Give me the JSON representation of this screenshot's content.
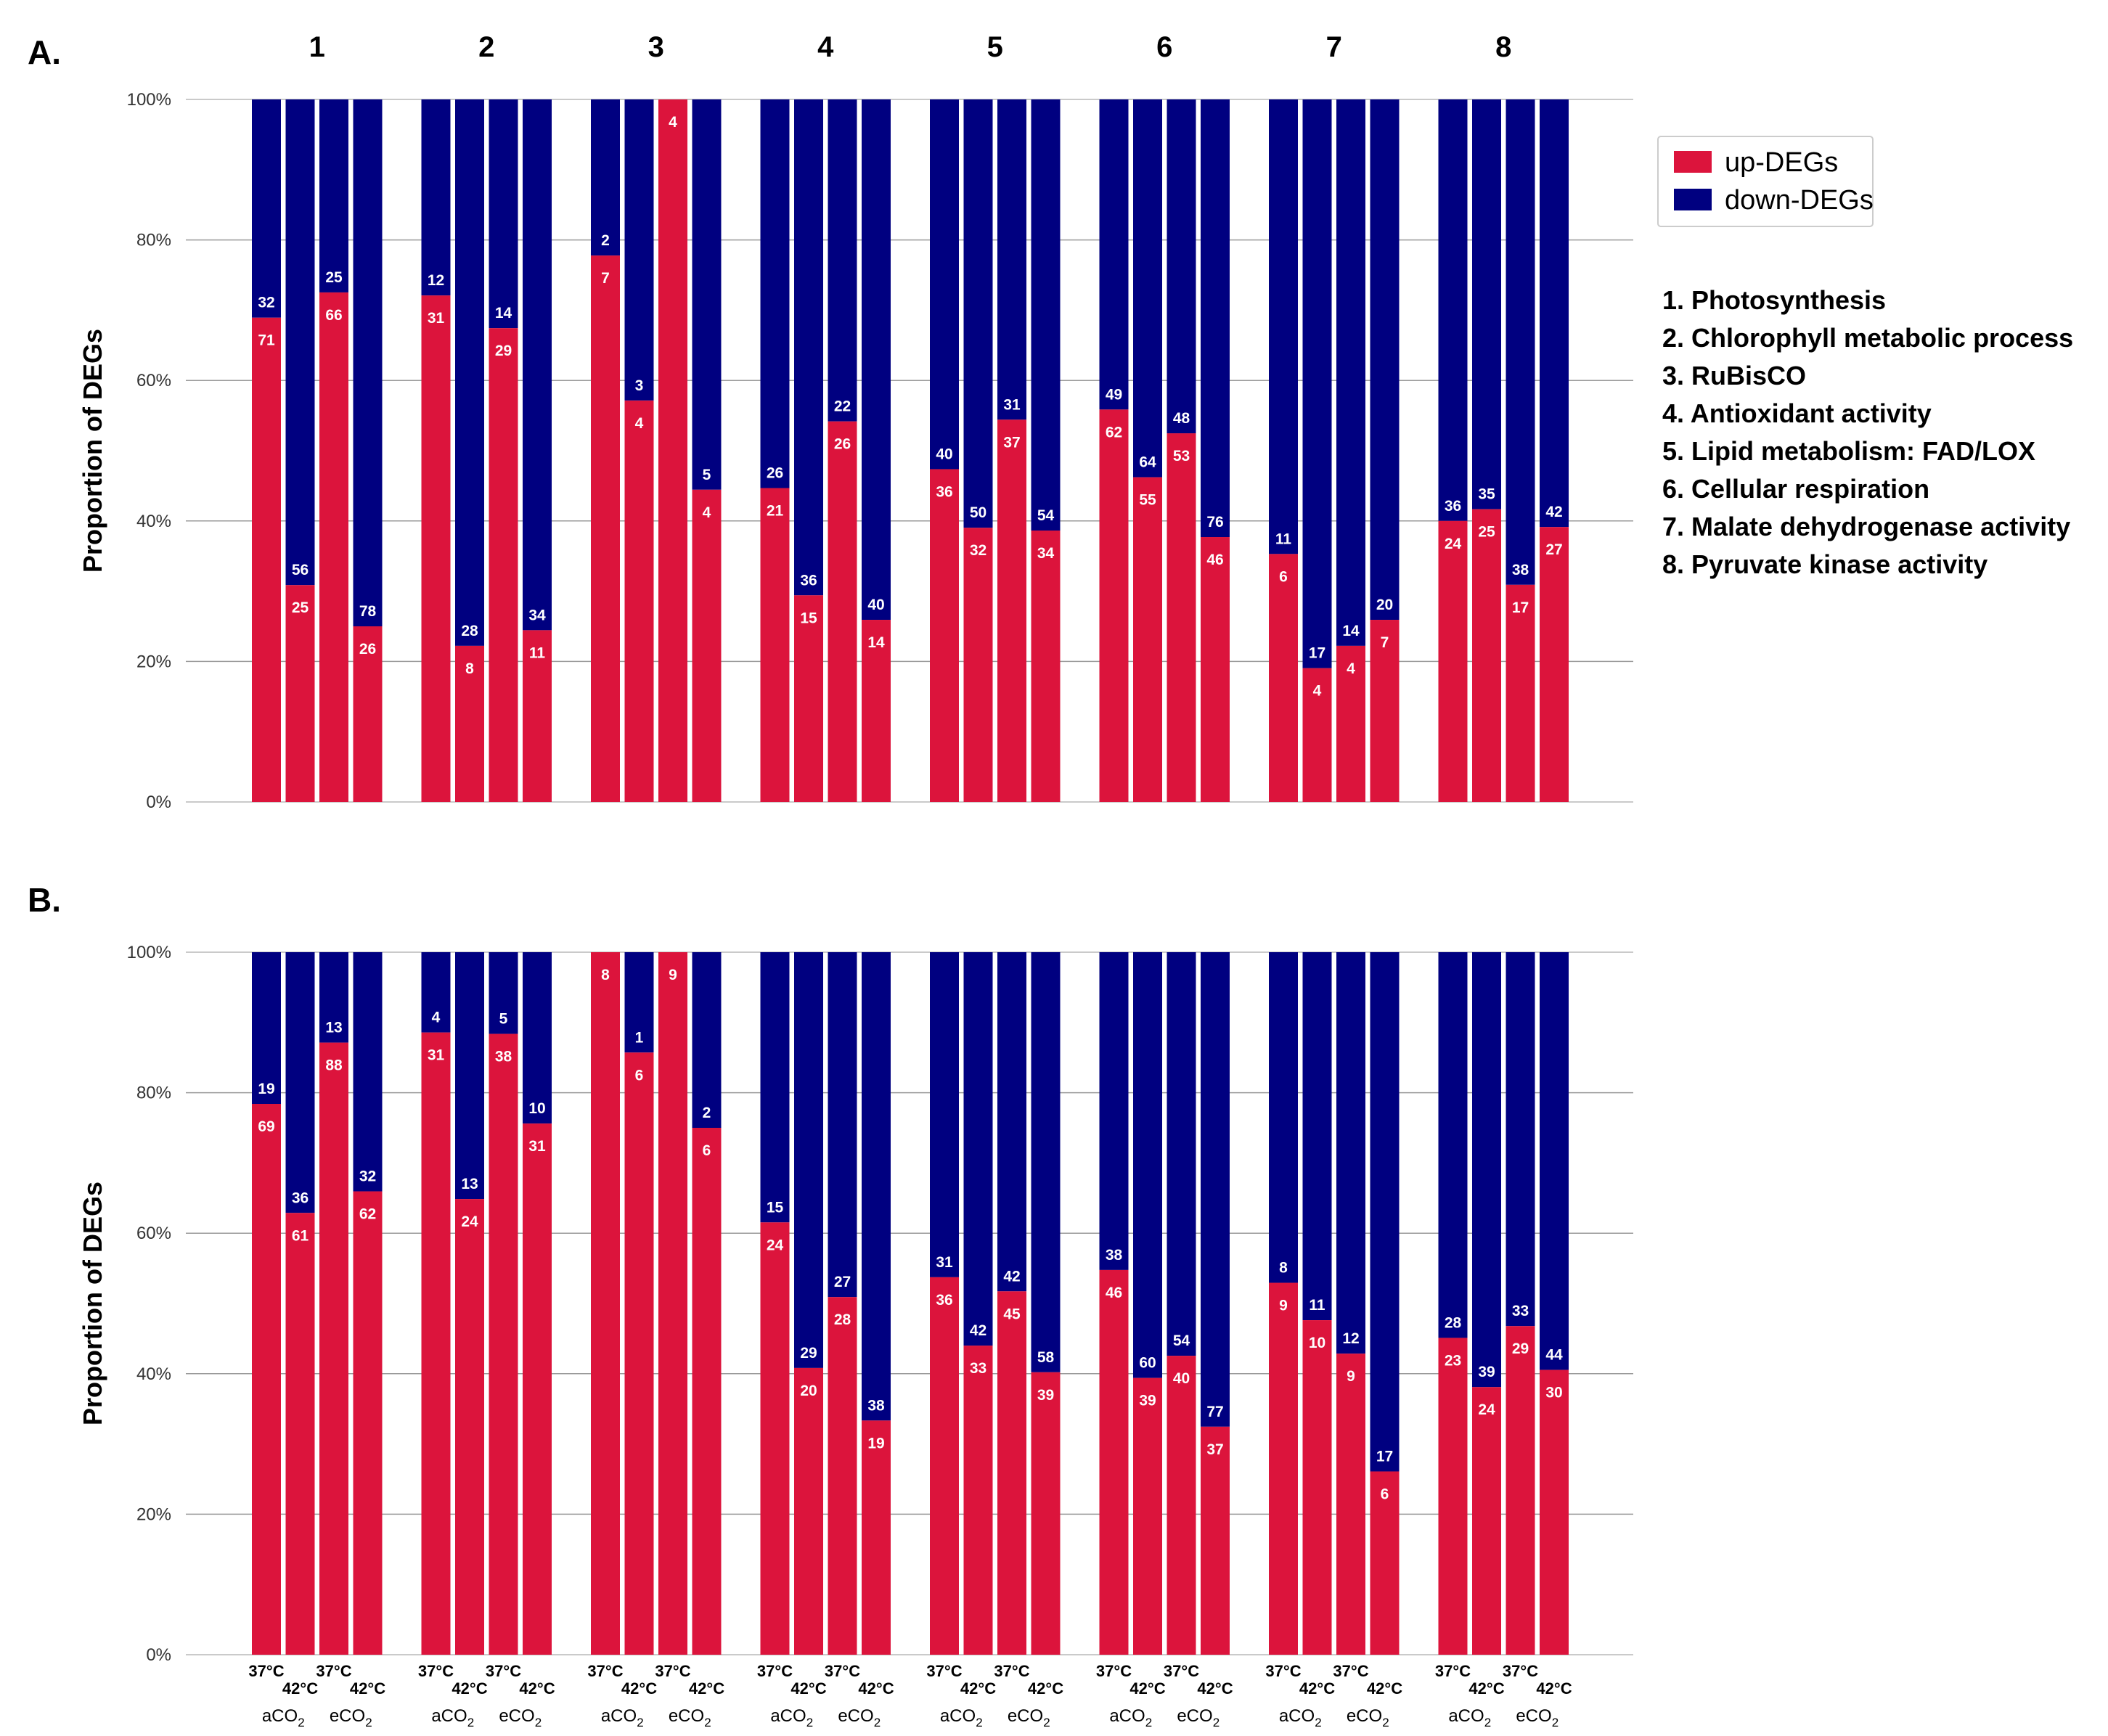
{
  "legend": {
    "entries": [
      {
        "label": "up-DEGs",
        "color": "#DC143C"
      },
      {
        "label": "down-DEGs",
        "color": "#000080"
      }
    ]
  },
  "category_key": [
    "1. Photosynthesis",
    "2. Chlorophyll metabolic process",
    "3. RuBisCO",
    "4. Antioxidant activity",
    "5. Lipid metabolism: FAD/LOX",
    "6. Cellular respiration",
    "7. Malate dehydrogenase activity",
    "8. Pyruvate kinase activity"
  ],
  "x_categories": {
    "temperatures": [
      "37°C",
      "42°C",
      "37°C",
      "42°C"
    ],
    "co2": [
      {
        "base": "aCO",
        "sub": "2"
      },
      {
        "base": "eCO",
        "sub": "2"
      }
    ]
  },
  "chart_data": [
    {
      "type": "bar",
      "stacked": "percent",
      "panel": "A.",
      "ylabel": "Proportion of DEGs",
      "ylim": [
        0,
        100
      ],
      "yticks": [
        "0%",
        "20%",
        "40%",
        "60%",
        "80%",
        "100%"
      ],
      "groups": [
        "1",
        "2",
        "3",
        "4",
        "5",
        "6",
        "7",
        "8"
      ],
      "bars_per_group": [
        "37°C aCO2",
        "42°C aCO2",
        "37°C eCO2",
        "42°C eCO2"
      ],
      "series": [
        {
          "name": "up-DEGs",
          "color": "#DC143C",
          "values": [
            [
              71,
              25,
              66,
              26
            ],
            [
              31,
              8,
              29,
              11
            ],
            [
              7,
              4,
              4,
              4
            ],
            [
              21,
              15,
              26,
              14
            ],
            [
              36,
              32,
              37,
              34
            ],
            [
              62,
              55,
              53,
              46
            ],
            [
              6,
              4,
              4,
              7
            ],
            [
              24,
              25,
              17,
              27
            ]
          ]
        },
        {
          "name": "down-DEGs",
          "color": "#000080",
          "values": [
            [
              32,
              56,
              25,
              78
            ],
            [
              12,
              28,
              14,
              34
            ],
            [
              2,
              3,
              0,
              5
            ],
            [
              26,
              36,
              22,
              40
            ],
            [
              40,
              50,
              31,
              54
            ],
            [
              49,
              64,
              48,
              76
            ],
            [
              11,
              17,
              14,
              20
            ],
            [
              36,
              35,
              38,
              42
            ]
          ]
        }
      ],
      "grid": true
    },
    {
      "type": "bar",
      "stacked": "percent",
      "panel": "B.",
      "ylabel": "Proportion of DEGs",
      "ylim": [
        0,
        100
      ],
      "yticks": [
        "0%",
        "20%",
        "40%",
        "60%",
        "80%",
        "100%"
      ],
      "groups": [
        "1",
        "2",
        "3",
        "4",
        "5",
        "6",
        "7",
        "8"
      ],
      "bars_per_group": [
        "37°C aCO2",
        "42°C aCO2",
        "37°C eCO2",
        "42°C eCO2"
      ],
      "series": [
        {
          "name": "up-DEGs",
          "color": "#DC143C",
          "values": [
            [
              69,
              61,
              88,
              62
            ],
            [
              31,
              24,
              38,
              31
            ],
            [
              8,
              6,
              9,
              6
            ],
            [
              24,
              20,
              28,
              19
            ],
            [
              36,
              33,
              45,
              39
            ],
            [
              46,
              39,
              40,
              37
            ],
            [
              9,
              10,
              9,
              6
            ],
            [
              23,
              24,
              29,
              30
            ]
          ]
        },
        {
          "name": "down-DEGs",
          "color": "#000080",
          "values": [
            [
              19,
              36,
              13,
              32
            ],
            [
              4,
              13,
              5,
              10
            ],
            [
              0,
              1,
              0,
              2
            ],
            [
              15,
              29,
              27,
              38
            ],
            [
              31,
              42,
              42,
              58
            ],
            [
              38,
              60,
              54,
              77
            ],
            [
              8,
              11,
              12,
              17
            ],
            [
              28,
              39,
              33,
              44
            ]
          ]
        }
      ],
      "grid": true
    }
  ]
}
